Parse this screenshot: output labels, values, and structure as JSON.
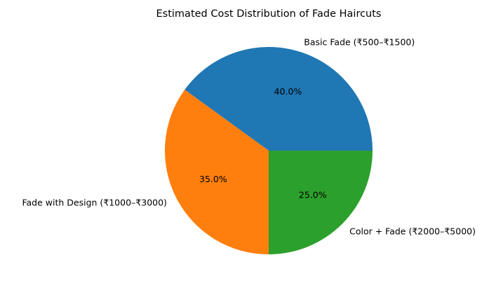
{
  "chart_data": {
    "type": "pie",
    "title": "Estimated Cost Distribution of Fade Haircuts",
    "categories": [
      "Basic Fade (₹500–₹1500)",
      "Fade with Design (₹1000–₹3000)",
      "Color + Fade (₹2000–₹5000)"
    ],
    "values": [
      40,
      35,
      25
    ],
    "percent_labels": [
      "40.0%",
      "35.0%",
      "25.0%"
    ],
    "colors": [
      "#1f77b4",
      "#ff7f0e",
      "#2ca02c"
    ],
    "start_angle_deg": 0,
    "direction": "counterclockwise",
    "legend": "none"
  }
}
